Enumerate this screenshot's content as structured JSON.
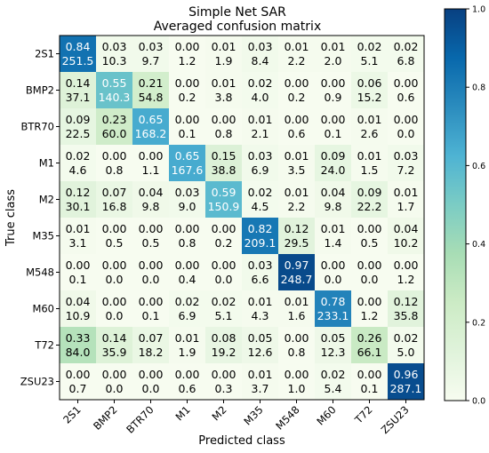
{
  "chart_data": {
    "type": "heatmap",
    "title": "Simple Net SAR",
    "subtitle": "Averaged confusion matrix",
    "xlabel": "Predicted class",
    "ylabel": "True class",
    "x_categories": [
      "2S1",
      "BMP2",
      "BTR70",
      "M1",
      "M2",
      "M35",
      "M548",
      "M60",
      "T72",
      "ZSU23"
    ],
    "y_categories": [
      "2S1",
      "BMP2",
      "BTR70",
      "M1",
      "M2",
      "M35",
      "M548",
      "M60",
      "T72",
      "ZSU23"
    ],
    "proportions": [
      [
        "0.84",
        "0.03",
        "0.03",
        "0.00",
        "0.01",
        "0.03",
        "0.01",
        "0.01",
        "0.02",
        "0.02"
      ],
      [
        "0.14",
        "0.55",
        "0.21",
        "0.00",
        "0.01",
        "0.02",
        "0.00",
        "0.00",
        "0.06",
        "0.00"
      ],
      [
        "0.09",
        "0.23",
        "0.65",
        "0.00",
        "0.00",
        "0.01",
        "0.00",
        "0.00",
        "0.01",
        "0.00"
      ],
      [
        "0.02",
        "0.00",
        "0.00",
        "0.65",
        "0.15",
        "0.03",
        "0.01",
        "0.09",
        "0.01",
        "0.03"
      ],
      [
        "0.12",
        "0.07",
        "0.04",
        "0.03",
        "0.59",
        "0.02",
        "0.01",
        "0.04",
        "0.09",
        "0.01"
      ],
      [
        "0.01",
        "0.00",
        "0.00",
        "0.00",
        "0.00",
        "0.82",
        "0.12",
        "0.01",
        "0.00",
        "0.04"
      ],
      [
        "0.00",
        "0.00",
        "0.00",
        "0.00",
        "0.00",
        "0.03",
        "0.97",
        "0.00",
        "0.00",
        "0.00"
      ],
      [
        "0.04",
        "0.00",
        "0.00",
        "0.02",
        "0.02",
        "0.01",
        "0.01",
        "0.78",
        "0.00",
        "0.12"
      ],
      [
        "0.33",
        "0.14",
        "0.07",
        "0.01",
        "0.08",
        "0.05",
        "0.00",
        "0.05",
        "0.26",
        "0.02"
      ],
      [
        "0.00",
        "0.00",
        "0.00",
        "0.00",
        "0.00",
        "0.01",
        "0.00",
        "0.02",
        "0.00",
        "0.96"
      ]
    ],
    "counts": [
      [
        "251.5",
        "10.3",
        "9.7",
        "1.2",
        "1.9",
        "8.4",
        "2.2",
        "2.0",
        "5.1",
        "6.8"
      ],
      [
        "37.1",
        "140.3",
        "54.8",
        "0.2",
        "3.8",
        "4.0",
        "0.2",
        "0.9",
        "15.2",
        "0.6"
      ],
      [
        "22.5",
        "60.0",
        "168.2",
        "0.1",
        "0.8",
        "2.1",
        "0.6",
        "0.1",
        "2.6",
        "0.0"
      ],
      [
        "4.6",
        "0.8",
        "1.1",
        "167.6",
        "38.8",
        "6.9",
        "3.5",
        "24.0",
        "1.5",
        "7.2"
      ],
      [
        "30.1",
        "16.8",
        "9.8",
        "9.0",
        "150.9",
        "4.5",
        "2.2",
        "9.8",
        "22.2",
        "1.7"
      ],
      [
        "3.1",
        "0.5",
        "0.5",
        "0.8",
        "0.2",
        "209.1",
        "29.5",
        "1.4",
        "0.5",
        "10.2"
      ],
      [
        "0.1",
        "0.0",
        "0.0",
        "0.4",
        "0.0",
        "6.6",
        "248.7",
        "0.0",
        "0.0",
        "1.2"
      ],
      [
        "10.9",
        "0.0",
        "0.1",
        "6.9",
        "5.1",
        "4.3",
        "1.6",
        "233.1",
        "1.2",
        "35.8"
      ],
      [
        "84.0",
        "35.9",
        "18.2",
        "1.9",
        "19.2",
        "12.6",
        "0.8",
        "12.3",
        "66.1",
        "5.0"
      ],
      [
        "0.7",
        "0.0",
        "0.0",
        "0.6",
        "0.3",
        "3.7",
        "1.0",
        "5.4",
        "0.1",
        "287.1"
      ]
    ],
    "colorbar": {
      "colormap": "GnBu",
      "range": [
        0.0,
        1.0
      ],
      "ticks": [
        "0.0",
        "0.2",
        "0.4",
        "0.6",
        "0.8",
        "1.0"
      ]
    },
    "grid": false
  }
}
